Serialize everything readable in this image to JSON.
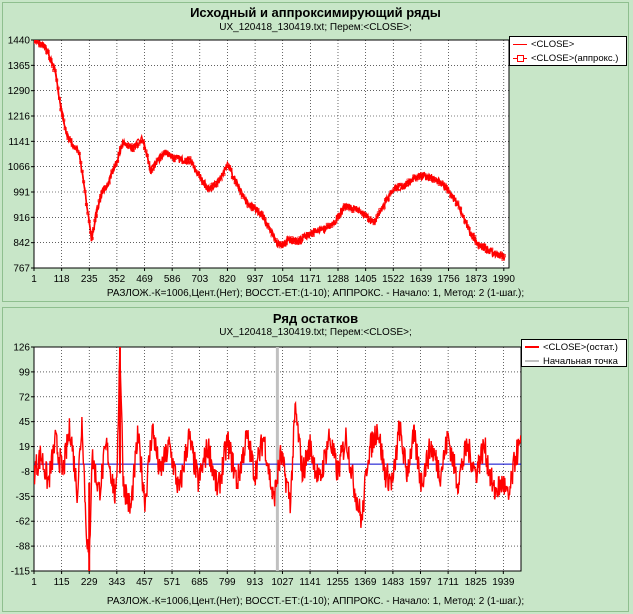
{
  "chart_data": [
    {
      "type": "line",
      "title": "Исходный и аппроксимирующий ряды",
      "subtitle": "UX_120418_130419.txt;     Перем:<CLOSE>;",
      "footer": "РАЗЛОЖ.-К=1006,Цент.(Нет);    ВОССТ.-ЕТ:(1-10);    АППРОКС. - Начало: 1, Метод: 2 (1-шаг.);",
      "xlim": [
        1,
        2012
      ],
      "ylim": [
        767,
        1440
      ],
      "x_ticks": [
        "1",
        "118",
        "235",
        "352",
        "469",
        "586",
        "703",
        "820",
        "937",
        "1054",
        "1171",
        "1288",
        "1405",
        "1522",
        "1639",
        "1756",
        "1873",
        "1990"
      ],
      "y_ticks": [
        "1440",
        "1365",
        "1290",
        "1216",
        "1141",
        "1066",
        "991",
        "916",
        "842",
        "767"
      ],
      "grid": true,
      "legend": "top-right",
      "series": [
        {
          "name": "<CLOSE>",
          "color": "#ff0000",
          "keypoints": [
            [
              1,
              1440
            ],
            [
              50,
              1420
            ],
            [
              90,
              1350
            ],
            [
              110,
              1260
            ],
            [
              140,
              1160
            ],
            [
              165,
              1130
            ],
            [
              190,
              1110
            ],
            [
              215,
              1000
            ],
            [
              235,
              900
            ],
            [
              245,
              850
            ],
            [
              265,
              930
            ],
            [
              290,
              990
            ],
            [
              315,
              1020
            ],
            [
              350,
              1080
            ],
            [
              380,
              1140
            ],
            [
              420,
              1120
            ],
            [
              460,
              1150
            ],
            [
              475,
              1110
            ],
            [
              495,
              1050
            ],
            [
              520,
              1080
            ],
            [
              560,
              1110
            ],
            [
              600,
              1090
            ],
            [
              660,
              1085
            ],
            [
              700,
              1040
            ],
            [
              740,
              1000
            ],
            [
              780,
              1020
            ],
            [
              820,
              1070
            ],
            [
              850,
              1030
            ],
            [
              900,
              960
            ],
            [
              930,
              945
            ],
            [
              960,
              930
            ],
            [
              1000,
              880
            ],
            [
              1030,
              840
            ],
            [
              1054,
              835
            ],
            [
              1080,
              850
            ],
            [
              1120,
              845
            ],
            [
              1170,
              870
            ],
            [
              1230,
              880
            ],
            [
              1280,
              910
            ],
            [
              1320,
              950
            ],
            [
              1360,
              940
            ],
            [
              1400,
              925
            ],
            [
              1440,
              900
            ],
            [
              1480,
              950
            ],
            [
              1520,
              1000
            ],
            [
              1570,
              1010
            ],
            [
              1610,
              1030
            ],
            [
              1650,
              1040
            ],
            [
              1700,
              1030
            ],
            [
              1750,
              1000
            ],
            [
              1800,
              950
            ],
            [
              1840,
              880
            ],
            [
              1880,
              840
            ],
            [
              1920,
              820
            ],
            [
              1950,
              810
            ],
            [
              1990,
              800
            ]
          ]
        },
        {
          "name": "<CLOSE>(аппрокс.)",
          "color": "#ff0000",
          "keypoints": [
            [
              1,
              1440
            ],
            [
              50,
              1420
            ],
            [
              90,
              1350
            ],
            [
              110,
              1260
            ],
            [
              140,
              1160
            ],
            [
              165,
              1130
            ],
            [
              190,
              1110
            ],
            [
              215,
              1000
            ],
            [
              235,
              900
            ],
            [
              245,
              850
            ],
            [
              265,
              930
            ],
            [
              290,
              990
            ],
            [
              315,
              1020
            ],
            [
              350,
              1080
            ],
            [
              380,
              1140
            ],
            [
              420,
              1120
            ],
            [
              460,
              1150
            ],
            [
              475,
              1110
            ],
            [
              495,
              1050
            ],
            [
              520,
              1080
            ],
            [
              560,
              1110
            ],
            [
              600,
              1090
            ],
            [
              660,
              1085
            ],
            [
              700,
              1040
            ],
            [
              740,
              1000
            ],
            [
              780,
              1020
            ],
            [
              820,
              1070
            ],
            [
              850,
              1030
            ],
            [
              900,
              960
            ],
            [
              930,
              945
            ],
            [
              960,
              930
            ],
            [
              1000,
              880
            ],
            [
              1030,
              840
            ],
            [
              1054,
              835
            ],
            [
              1080,
              850
            ],
            [
              1120,
              845
            ],
            [
              1170,
              870
            ],
            [
              1230,
              880
            ],
            [
              1280,
              910
            ],
            [
              1320,
              950
            ],
            [
              1360,
              940
            ],
            [
              1400,
              925
            ],
            [
              1440,
              900
            ],
            [
              1480,
              950
            ],
            [
              1520,
              1000
            ],
            [
              1570,
              1010
            ],
            [
              1610,
              1030
            ],
            [
              1650,
              1040
            ],
            [
              1700,
              1030
            ],
            [
              1750,
              1000
            ],
            [
              1800,
              950
            ],
            [
              1840,
              880
            ],
            [
              1880,
              840
            ],
            [
              1920,
              820
            ],
            [
              1950,
              810
            ],
            [
              1990,
              800
            ]
          ]
        }
      ]
    },
    {
      "type": "line",
      "title": "Ряд остатков",
      "subtitle": "UX_120418_130419.txt;     Перем:<CLOSE>;",
      "footer": "РАЗЛОЖ.-К=1006,Цент.(Нет);    ВОССТ.-ЕТ:(1-10);    АППРОКС. - Начало: 1, Метод: 2 (1-шаг.);",
      "xlim": [
        1,
        2012
      ],
      "ylim": [
        -115,
        126
      ],
      "x_ticks": [
        "1",
        "115",
        "229",
        "343",
        "457",
        "571",
        "685",
        "799",
        "913",
        "1027",
        "1141",
        "1255",
        "1369",
        "1483",
        "1597",
        "1711",
        "1825",
        "1939"
      ],
      "y_ticks": [
        "126",
        "99",
        "72",
        "45",
        "19",
        "-8",
        "-35",
        "-62",
        "-88",
        "-115"
      ],
      "grid": true,
      "legend": "top-right",
      "zero_line": {
        "value": 0,
        "color": "#0000cc"
      },
      "start_point": {
        "x": 1006,
        "color": "#c0c0c0"
      },
      "series": [
        {
          "name": "<CLOSE>(остат.)",
          "color": "#ff0000",
          "keypoints": [
            [
              1,
              -8
            ],
            [
              30,
              10
            ],
            [
              60,
              -20
            ],
            [
              90,
              25
            ],
            [
              120,
              -10
            ],
            [
              150,
              40
            ],
            [
              180,
              -30
            ],
            [
              200,
              50
            ],
            [
              215,
              -60
            ],
            [
              229,
              -110
            ],
            [
              240,
              10
            ],
            [
              270,
              -30
            ],
            [
              300,
              20
            ],
            [
              340,
              -40
            ],
            [
              356,
              126
            ],
            [
              370,
              -20
            ],
            [
              400,
              -50
            ],
            [
              430,
              30
            ],
            [
              460,
              -40
            ],
            [
              490,
              40
            ],
            [
              520,
              -10
            ],
            [
              560,
              20
            ],
            [
              600,
              -30
            ],
            [
              640,
              30
            ],
            [
              680,
              -20
            ],
            [
              720,
              20
            ],
            [
              760,
              -30
            ],
            [
              800,
              25
            ],
            [
              840,
              -20
            ],
            [
              880,
              30
            ],
            [
              913,
              -10
            ],
            [
              950,
              30
            ],
            [
              990,
              -40
            ],
            [
              1020,
              10
            ],
            [
              1060,
              -40
            ],
            [
              1080,
              60
            ],
            [
              1110,
              -10
            ],
            [
              1140,
              20
            ],
            [
              1180,
              -20
            ],
            [
              1220,
              30
            ],
            [
              1255,
              -10
            ],
            [
              1290,
              30
            ],
            [
              1320,
              -20
            ],
            [
              1355,
              -62
            ],
            [
              1380,
              10
            ],
            [
              1420,
              40
            ],
            [
              1450,
              -10
            ],
            [
              1483,
              -20
            ],
            [
              1510,
              40
            ],
            [
              1540,
              -10
            ],
            [
              1570,
              30
            ],
            [
              1600,
              -20
            ],
            [
              1640,
              20
            ],
            [
              1680,
              -10
            ],
            [
              1711,
              30
            ],
            [
              1750,
              -20
            ],
            [
              1790,
              20
            ],
            [
              1825,
              -10
            ],
            [
              1860,
              20
            ],
            [
              1900,
              -30
            ],
            [
              1939,
              -20
            ],
            [
              1960,
              -40
            ],
            [
              1990,
              10
            ],
            [
              2012,
              20
            ]
          ]
        },
        {
          "name": "Начальная точка",
          "color": "#c0c0c0"
        }
      ]
    }
  ]
}
